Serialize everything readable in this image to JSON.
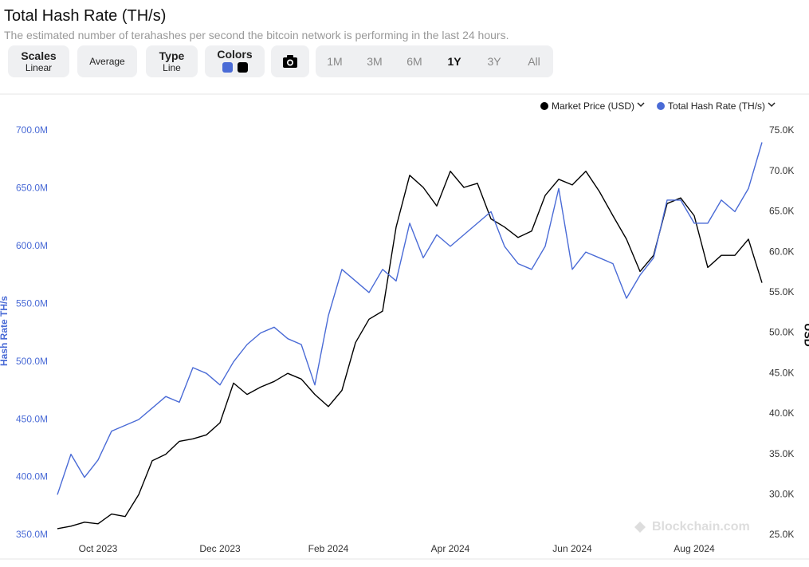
{
  "header": {
    "title": "Total Hash Rate (TH/s)",
    "subtitle": "The estimated number of terahashes per second the bitcoin network is performing in the last 24 hours."
  },
  "toolbar": {
    "scales": {
      "label": "Scales",
      "value": "Linear"
    },
    "average": "Average",
    "type": {
      "label": "Type",
      "value": "Line"
    },
    "colors": "Colors",
    "ranges": [
      "1M",
      "3M",
      "6M",
      "1Y",
      "3Y",
      "All"
    ],
    "active_range": 3
  },
  "watermark": "Blockchain.com",
  "chart_data": {
    "type": "line",
    "y_label": "Hash Rate TH/s",
    "y2_label": "USD",
    "categories": [
      null,
      null,
      null,
      "Oct 2023",
      null,
      null,
      null,
      null,
      null,
      null,
      null,
      null,
      "Dec 2023",
      null,
      null,
      null,
      null,
      null,
      null,
      null,
      "Feb 2024",
      null,
      null,
      null,
      null,
      null,
      null,
      null,
      null,
      "Apr 2024",
      null,
      null,
      null,
      null,
      null,
      null,
      null,
      null,
      "Jun 2024",
      null,
      null,
      null,
      null,
      null,
      null,
      null,
      null,
      "Aug 2024",
      null,
      null,
      null,
      null,
      null
    ],
    "series": [
      {
        "name": "Market Price (USD)",
        "color": "#000000",
        "axis": "y2",
        "values": [
          25800,
          26100,
          26600,
          26400,
          27600,
          27300,
          30000,
          34200,
          35000,
          36600,
          36900,
          37400,
          38900,
          43800,
          42400,
          43300,
          44000,
          45000,
          44300,
          42400,
          40900,
          42900,
          48800,
          51700,
          52700,
          63100,
          69500,
          68000,
          65700,
          70000,
          68000,
          68500,
          64100,
          63100,
          61800,
          62600,
          67000,
          69000,
          68300,
          70000,
          67500,
          64500,
          61600,
          57600,
          59600,
          66000,
          66700,
          64500,
          58100,
          59600,
          59600,
          61600,
          56200
        ]
      },
      {
        "name": "Total Hash Rate (TH/s)",
        "color": "#4a6bd6",
        "values": [
          385000000,
          420000000,
          400000000,
          415000000,
          440000000,
          445000000,
          450000000,
          460000000,
          470000000,
          465000000,
          495000000,
          490000000,
          480000000,
          500000000,
          515000000,
          525000000,
          530000000,
          520000000,
          515000000,
          480000000,
          540000000,
          580000000,
          570000000,
          560000000,
          580000000,
          570000000,
          620000000,
          590000000,
          610000000,
          600000000,
          610000000,
          620000000,
          630000000,
          600000000,
          585000000,
          580000000,
          600000000,
          650000000,
          580000000,
          595000000,
          590000000,
          585000000,
          555000000,
          575000000,
          590000000,
          640000000,
          640000000,
          620000000,
          620000000,
          640000000,
          630000000,
          650000000,
          690000000
        ]
      }
    ],
    "ylim": [
      350000000,
      700000000
    ],
    "yticks": [
      {
        "value": 350000000,
        "label": "350.0M"
      },
      {
        "value": 400000000,
        "label": "400.0M"
      },
      {
        "value": 450000000,
        "label": "450.0M"
      },
      {
        "value": 500000000,
        "label": "500.0M"
      },
      {
        "value": 550000000,
        "label": "550.0M"
      },
      {
        "value": 600000000,
        "label": "600.0M"
      },
      {
        "value": 650000000,
        "label": "650.0M"
      },
      {
        "value": 700000000,
        "label": "700.0M"
      }
    ],
    "y2lim": [
      25000,
      75000
    ],
    "y2ticks": [
      {
        "value": 25000,
        "label": "25.0K"
      },
      {
        "value": 30000,
        "label": "30.0K"
      },
      {
        "value": 35000,
        "label": "35.0K"
      },
      {
        "value": 40000,
        "label": "40.0K"
      },
      {
        "value": 45000,
        "label": "45.0K"
      },
      {
        "value": 50000,
        "label": "50.0K"
      },
      {
        "value": 55000,
        "label": "55.0K"
      },
      {
        "value": 60000,
        "label": "60.0K"
      },
      {
        "value": 65000,
        "label": "65.0K"
      },
      {
        "value": 70000,
        "label": "70.0K"
      },
      {
        "value": 75000,
        "label": "75.0K"
      }
    ],
    "grid": false,
    "legend": "top-right"
  }
}
